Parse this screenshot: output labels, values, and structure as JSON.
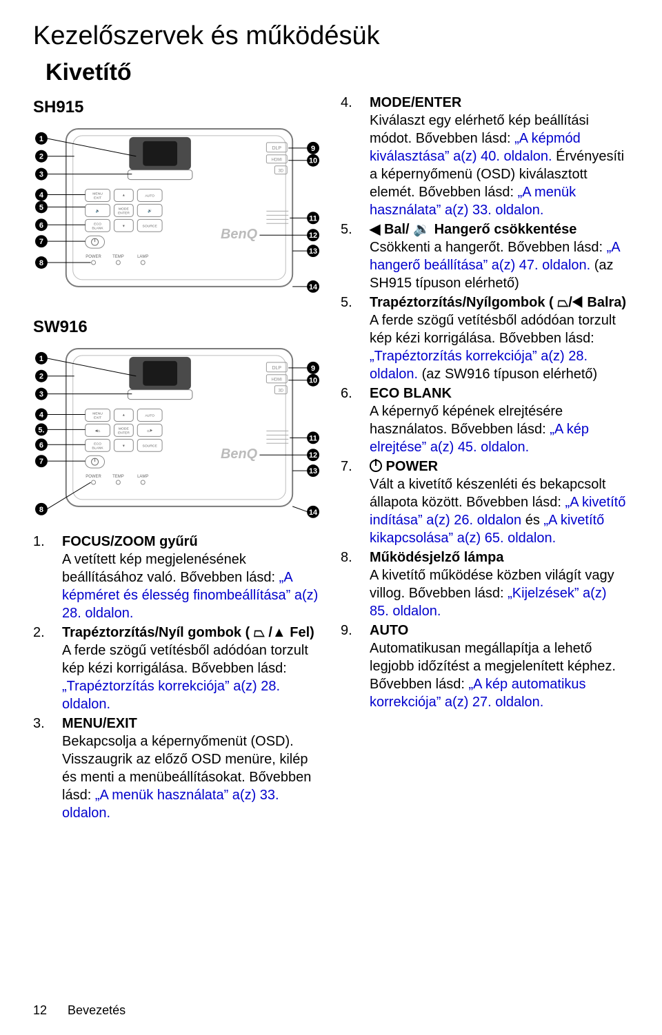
{
  "page": {
    "title": "Kezelőszervek és működésük",
    "subtitle": "Kivetítő",
    "footer_page": "12",
    "footer_section": "Bevezetés"
  },
  "models": {
    "sh915": "SH915",
    "sw916": "SW916"
  },
  "diagram": {
    "border_color": "#7a7a7a",
    "label_circle_fill": "#000000",
    "label_circle_text": "#ffffff",
    "left_labels": [
      1,
      2,
      3,
      4,
      5,
      6,
      7,
      8
    ],
    "right_labels": [
      9,
      10,
      11,
      12,
      13,
      14
    ],
    "buttons_sh915": [
      "MENU EXIT",
      "AUTO",
      "MODE ENTER",
      "ECO BLANK",
      "SOURCE"
    ],
    "buttons_sw916": [
      "MENU EXIT",
      "AUTO",
      "MODE ENTER",
      "ECO BLANK",
      "SOURCE"
    ],
    "indicator_labels": [
      "POWER",
      "TEMP",
      "LAMP"
    ],
    "brand": "BenQ",
    "badges": [
      "DLP",
      "HDMI",
      "3D"
    ]
  },
  "link_color": "#0000cc",
  "left_items": [
    {
      "n": "1.",
      "title": "FOCUS/ZOOM gyűrű",
      "body_pre": "A vetített kép megjelenésének beállításához való. Bővebben lásd: ",
      "link": "„A képméret és élesség finombeállítása” a(z) 28. oldalon.",
      "body_post": ""
    },
    {
      "n": "2.",
      "title": "Trapéztorzítás/Nyíl gombok ( ⏢ /▲ Fel)",
      "body_pre": "A ferde szögű vetítésből adódóan torzult kép kézi korrigálása. Bővebben lásd: ",
      "link": "„Trapéztorzítás korrekciója” a(z) 28. oldalon.",
      "body_post": ""
    },
    {
      "n": "3.",
      "title": "MENU/EXIT",
      "body_pre": "Bekapcsolja a képernyőmenüt (OSD). Visszaugrik az előző OSD menüre, kilép és menti a menübeállításokat. Bővebben lásd: ",
      "link": "„A menük használata” a(z) 33. oldalon.",
      "body_post": ""
    }
  ],
  "right_items": [
    {
      "n": "4.",
      "title": "MODE/ENTER",
      "body_pre": "Kiválaszt egy elérhető kép beállítási módot. Bővebben lásd: ",
      "link": "„A képmód kiválasztása” a(z) 40. oldalon.",
      "body_mid": " Érvényesíti a képernyőmenü (OSD) kiválasztott elemét. Bővebben lásd: ",
      "link2": "„A menük használata” a(z) 33. oldalon.",
      "body_post": ""
    },
    {
      "n": "5.",
      "title": "◀ Bal/ 🔉 Hangerő csökkentése",
      "body_pre": "Csökkenti a hangerőt. Bővebben lásd: ",
      "link": "„A hangerő beállítása” a(z) 47. oldalon.",
      "body_post": " (az SH915 típuson elérhető)"
    },
    {
      "n": "5.",
      "title": "Trapéztorzítás/Nyílgombok ( ⏢/◀ Balra)",
      "body_pre": "A ferde szögű vetítésből adódóan torzult kép kézi korrigálása. Bővebben lásd: ",
      "link": "„Trapéztorzítás korrekciója” a(z) 28. oldalon.",
      "body_post": " (az SW916 típuson elérhető)"
    },
    {
      "n": "6.",
      "title": "ECO BLANK",
      "body_pre": "A képernyő képének elrejtésére használatos. Bővebben lásd: ",
      "link": "„A kép elrejtése” a(z) 45. oldalon.",
      "body_post": ""
    },
    {
      "n": "7.",
      "title_prefix_icon": "power",
      "title": " POWER",
      "body_pre": "Vált a kivetítő készenléti és bekapcsolt állapota között. Bővebben lásd: ",
      "link": "„A kivetítő indítása” a(z) 26. oldalon",
      "body_mid": " és ",
      "link2": "„A kivetítő kikapcsolása” a(z) 65. oldalon.",
      "body_post": ""
    },
    {
      "n": "8.",
      "title": "Működésjelző lámpa",
      "body_pre": "A kivetítő működése közben világít vagy villog. Bővebben lásd: ",
      "link": "„Kijelzések” a(z) 85. oldalon.",
      "body_post": ""
    },
    {
      "n": "9.",
      "title": "AUTO",
      "body_pre": "Automatikusan megállapítja a lehető legjobb időzítést a megjelenített képhez. Bővebben lásd: ",
      "link": "„A kép automatikus korrekciója” a(z) 27. oldalon.",
      "body_post": ""
    }
  ]
}
